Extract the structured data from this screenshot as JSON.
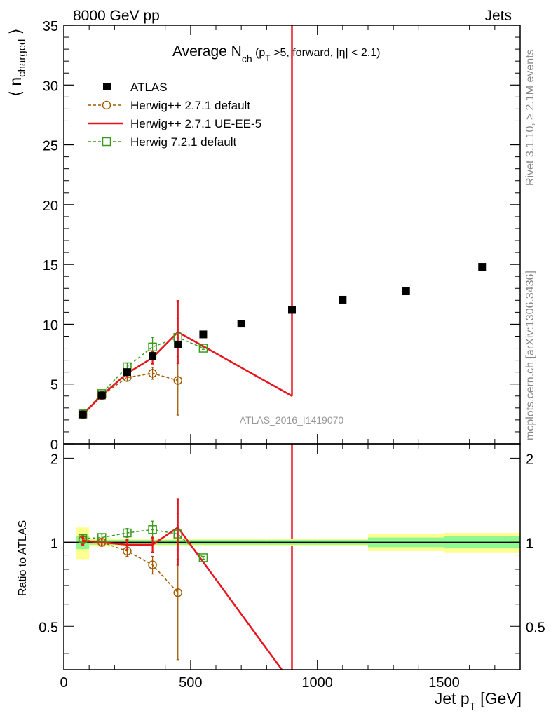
{
  "header": {
    "left": "8000 GeV pp",
    "right": "Jets"
  },
  "side_text": {
    "rivet": "Rivet 3.1.10, ≥ 2.1M events",
    "mcplots": "mcplots.cern.ch [arXiv:1306.3436]"
  },
  "watermark": "ATLAS_2016_I1419070",
  "colors": {
    "atlas": "#000000",
    "herwigpp_default": "#a05a00",
    "herwigpp_ueee5": "#e8141c",
    "herwig7": "#3a9a1a",
    "band_inner": "#90f890",
    "band_outer": "#ffff90"
  },
  "chart_data": [
    {
      "type": "scatter",
      "panel": "main",
      "title": "Average N_ch (p_T > 5, forward, |η| < 2.1)",
      "title_parts": {
        "main": "Average N",
        "sub1": "ch",
        "mid": " (p",
        "sub2": "T",
        "rest": " >5, forward, |η| < 2.1)"
      },
      "ylabel": "⟨ n_charged ⟩",
      "ylabel_parts": {
        "main": "n",
        "sub": "charged"
      },
      "xlim": [
        0,
        1800
      ],
      "ylim": [
        0,
        35
      ],
      "yticks": [
        0,
        5,
        10,
        15,
        20,
        25,
        30,
        35
      ],
      "legend_position": "top-left",
      "series": [
        {
          "name": "ATLAS",
          "style": "markers",
          "x": [
            75,
            150,
            250,
            350,
            450,
            550,
            700,
            900,
            1100,
            1350,
            1650
          ],
          "y": [
            2.45,
            4.05,
            6.0,
            7.35,
            8.3,
            9.15,
            10.05,
            11.2,
            12.05,
            12.75,
            14.8
          ]
        },
        {
          "name": "Herwig++ 2.7.1 default",
          "style": "dashed-circles",
          "x": [
            75,
            150,
            250,
            350,
            450
          ],
          "y": [
            2.45,
            4.05,
            5.55,
            5.9,
            5.3
          ],
          "yerr": [
            0.1,
            0.15,
            0.3,
            0.5,
            2.9
          ]
        },
        {
          "name": "Herwig++ 2.7.1 UE-EE-5",
          "style": "solid-line",
          "x": [
            75,
            150,
            250,
            350,
            450,
            900
          ],
          "y": [
            2.45,
            4.05,
            5.9,
            7.2,
            9.35,
            4.0
          ],
          "yerr": [
            0.1,
            0.15,
            0.3,
            0.5,
            2.6,
            0
          ],
          "spike_x": 900
        },
        {
          "name": "Herwig 7.2.1 default",
          "style": "dashed-squares",
          "x": [
            75,
            150,
            250,
            350,
            450,
            550
          ],
          "y": [
            2.5,
            4.2,
            6.45,
            8.1,
            8.9,
            8.0
          ],
          "yerr": [
            0.1,
            0.15,
            0.3,
            0.8,
            1.6,
            0.1
          ]
        }
      ]
    },
    {
      "type": "scatter",
      "panel": "ratio",
      "xlabel": "Jet p_T [GeV]",
      "xlabel_parts": {
        "main": "Jet p",
        "sub": "T",
        "rest": " [GeV]"
      },
      "ylabel": "Ratio to ATLAS",
      "xlim": [
        0,
        1800
      ],
      "ylim": [
        0.35,
        2.25
      ],
      "xticks": [
        0,
        500,
        1000,
        1500
      ],
      "yticks": [
        0.5,
        1,
        2
      ],
      "bands": {
        "x_edges": [
          50,
          100,
          200,
          300,
          400,
          500,
          600,
          800,
          1000,
          1200,
          1500,
          1800
        ],
        "inner": [
          0.055,
          0.02,
          0.02,
          0.02,
          0.02,
          0.02,
          0.02,
          0.02,
          0.02,
          0.04,
          0.05
        ],
        "outer": [
          0.13,
          0.035,
          0.03,
          0.03,
          0.03,
          0.03,
          0.03,
          0.03,
          0.03,
          0.07,
          0.08
        ]
      },
      "series": [
        {
          "name": "Herwig++ 2.7.1 default",
          "x": [
            75,
            150,
            250,
            350,
            450
          ],
          "y": [
            1.02,
            1.0,
            0.93,
            0.83,
            0.66
          ],
          "yerr": [
            0.03,
            0.03,
            0.04,
            0.06,
            0.28
          ]
        },
        {
          "name": "Herwig++ 2.7.1 UE-EE-5",
          "x": [
            75,
            150,
            250,
            350,
            450,
            860
          ],
          "y": [
            1.01,
            1.0,
            0.98,
            0.98,
            1.13,
            0.35
          ],
          "yerr": [
            0.03,
            0.03,
            0.04,
            0.06,
            0.3,
            0
          ]
        },
        {
          "name": "Herwig 7.2.1 default",
          "x": [
            75,
            150,
            250,
            350,
            450,
            550
          ],
          "y": [
            1.03,
            1.04,
            1.08,
            1.11,
            1.07,
            0.88
          ],
          "yerr": [
            0.03,
            0.03,
            0.04,
            0.08,
            0.2,
            0.01
          ]
        }
      ]
    }
  ]
}
